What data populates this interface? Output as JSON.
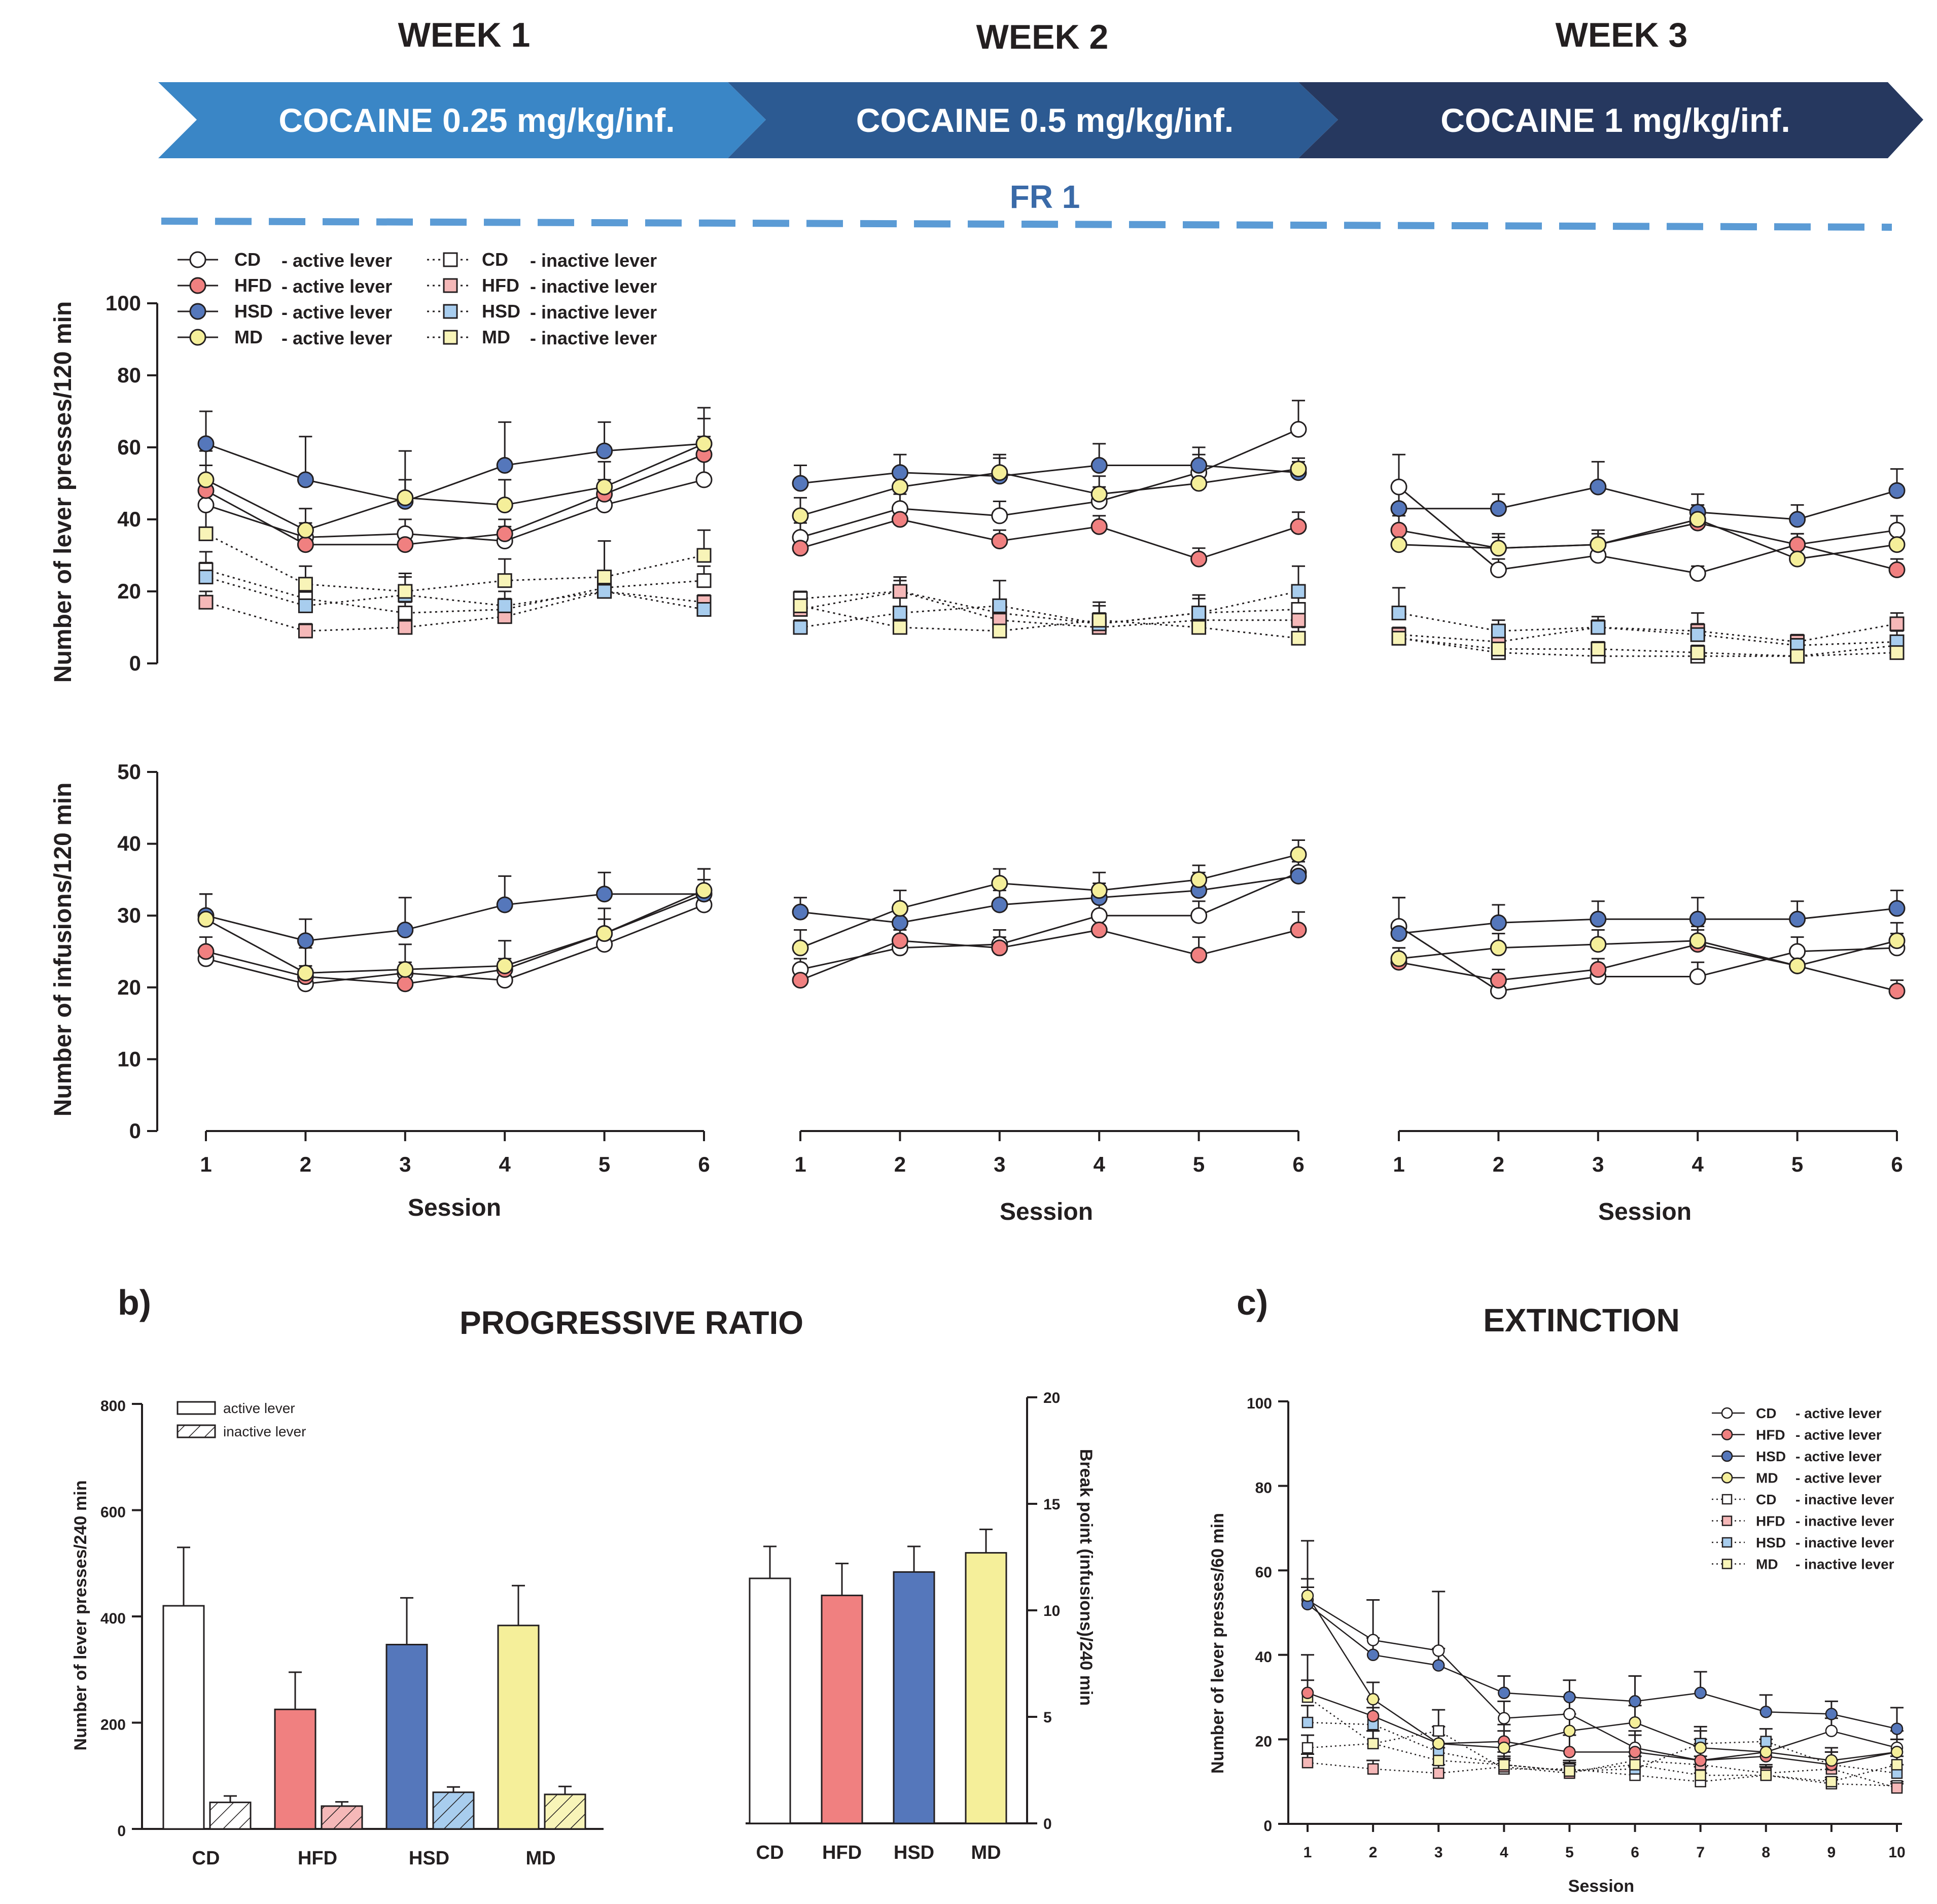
{
  "header": {
    "weeks": [
      {
        "label": "WEEK 1",
        "banner": "COCAINE 0.25 mg/kg/inf."
      },
      {
        "label": "WEEK 2",
        "banner": "COCAINE 0.5 mg/kg/inf."
      },
      {
        "label": "WEEK 3",
        "banner": "COCAINE 1 mg/kg/inf."
      }
    ],
    "schedule": "FR 1",
    "colors": {
      "banner1": "#3a86c6",
      "banner2": "#2c5a92",
      "banner3": "#26385f",
      "dash": "#5b9bd5"
    }
  },
  "groups": [
    {
      "name": "CD",
      "color": "#ffffff"
    },
    {
      "name": "HFD",
      "color": "#f08080"
    },
    {
      "name": "HSD",
      "color": "#5577bb"
    },
    {
      "name": "MD",
      "color": "#f5ef9a"
    }
  ],
  "inactive_colors": {
    "CD": "#ffffff",
    "HFD": "#f5b8b8",
    "HSD": "#a8cdee",
    "MD": "#f8f4b8"
  },
  "legend": {
    "active_suffix": "- active lever",
    "inactive_suffix": "- inactive lever"
  },
  "panel_labels": {
    "b": "b)",
    "c": "c)"
  },
  "chart_data": [
    {
      "id": "lever-presses",
      "type": "line",
      "ylabel": "Number of lever presses/120 min",
      "ylim": [
        0,
        100
      ],
      "yticks": [
        0,
        20,
        40,
        60,
        80,
        100
      ],
      "xlabel": "Session",
      "x": [
        1,
        2,
        3,
        4,
        5,
        6
      ],
      "weeks": [
        {
          "active": {
            "CD": {
              "values": [
                44,
                35,
                36,
                34,
                44,
                51
              ],
              "err": [
                7,
                4,
                4,
                4,
                5,
                6
              ]
            },
            "HFD": {
              "values": [
                48,
                33,
                33,
                36,
                47,
                58
              ],
              "err": [
                7,
                3,
                3,
                4,
                4,
                5
              ]
            },
            "HSD": {
              "values": [
                61,
                51,
                45,
                55,
                59,
                61
              ],
              "err": [
                9,
                12,
                14,
                12,
                8,
                10
              ]
            },
            "MD": {
              "values": [
                51,
                37,
                46,
                44,
                49,
                61
              ],
              "err": [
                8,
                6,
                5,
                7,
                7,
                7
              ]
            }
          },
          "inactive": {
            "CD": {
              "values": [
                26,
                18,
                14,
                15,
                21,
                23
              ],
              "err": [
                5,
                3,
                3,
                3,
                4,
                4
              ]
            },
            "HFD": {
              "values": [
                17,
                9,
                10,
                13,
                20,
                17
              ],
              "err": [
                3,
                2,
                2,
                2,
                2,
                2
              ]
            },
            "HSD": {
              "values": [
                24,
                16,
                19,
                16,
                20,
                15
              ],
              "err": [
                4,
                4,
                5,
                4,
                4,
                3
              ]
            },
            "MD": {
              "values": [
                36,
                22,
                20,
                23,
                24,
                30
              ],
              "err": [
                8,
                5,
                5,
                6,
                10,
                7
              ]
            }
          }
        },
        {
          "active": {
            "CD": {
              "values": [
                35,
                43,
                41,
                45,
                53,
                65
              ],
              "err": [
                4,
                4,
                4,
                4,
                5,
                8
              ]
            },
            "HFD": {
              "values": [
                32,
                40,
                34,
                38,
                29,
                38
              ],
              "err": [
                3,
                3,
                3,
                3,
                3,
                4
              ]
            },
            "HSD": {
              "values": [
                50,
                53,
                52,
                55,
                55,
                53
              ],
              "err": [
                5,
                5,
                5,
                6,
                5,
                3
              ]
            },
            "MD": {
              "values": [
                41,
                49,
                53,
                47,
                50,
                54
              ],
              "err": [
                5,
                5,
                5,
                5,
                6,
                3
              ]
            }
          },
          "inactive": {
            "CD": {
              "values": [
                18,
                20,
                14,
                11,
                14,
                15
              ],
              "err": [
                2,
                3,
                3,
                3,
                4,
                4
              ]
            },
            "HFD": {
              "values": [
                15,
                20,
                12,
                10,
                12,
                12
              ],
              "err": [
                3,
                4,
                4,
                3,
                3,
                3
              ]
            },
            "HSD": {
              "values": [
                10,
                14,
                16,
                11,
                14,
                20
              ],
              "err": [
                2,
                6,
                7,
                5,
                5,
                7
              ]
            },
            "MD": {
              "values": [
                16,
                10,
                9,
                12,
                10,
                7
              ],
              "err": [
                4,
                3,
                3,
                5,
                3,
                3
              ]
            }
          }
        },
        {
          "active": {
            "CD": {
              "values": [
                49,
                26,
                30,
                25,
                33,
                37
              ],
              "err": [
                9,
                3,
                3,
                2,
                3,
                4
              ]
            },
            "HFD": {
              "values": [
                37,
                32,
                33,
                39,
                33,
                26
              ],
              "err": [
                4,
                3,
                3,
                3,
                3,
                3
              ]
            },
            "HSD": {
              "values": [
                43,
                43,
                49,
                42,
                40,
                48
              ],
              "err": [
                5,
                4,
                7,
                5,
                4,
                6
              ]
            },
            "MD": {
              "values": [
                33,
                32,
                33,
                40,
                29,
                33
              ],
              "err": [
                4,
                4,
                4,
                4,
                4,
                4
              ]
            }
          },
          "inactive": {
            "CD": {
              "values": [
                7,
                3,
                2,
                2,
                2,
                5
              ],
              "err": [
                2,
                1,
                1,
                1,
                1,
                2
              ]
            },
            "HFD": {
              "values": [
                8,
                6,
                10,
                9,
                6,
                11
              ],
              "err": [
                2,
                2,
                2,
                2,
                2,
                3
              ]
            },
            "HSD": {
              "values": [
                14,
                9,
                10,
                8,
                5,
                6
              ],
              "err": [
                7,
                3,
                3,
                6,
                2,
                3
              ]
            },
            "MD": {
              "values": [
                7,
                4,
                4,
                3,
                2,
                3
              ],
              "err": [
                2,
                2,
                2,
                2,
                1,
                1
              ]
            }
          }
        }
      ]
    },
    {
      "id": "infusions",
      "type": "line",
      "ylabel": "Number of infusions/120 min",
      "ylim": [
        0,
        50
      ],
      "yticks": [
        0,
        10,
        20,
        30,
        40,
        50
      ],
      "xlabel": "Session",
      "x": [
        1,
        2,
        3,
        4,
        5,
        6
      ],
      "weeks": [
        {
          "CD": {
            "values": [
              24,
              20.5,
              22,
              21,
              26,
              31.5
            ],
            "err": [
              1.5,
              1.5,
              1.5,
              1.5,
              1.5,
              2
            ]
          },
          "HFD": {
            "values": [
              25,
              21.5,
              20.5,
              22.5,
              27.5,
              33
            ],
            "err": [
              2,
              1.5,
              1.5,
              1.5,
              2,
              2
            ]
          },
          "HSD": {
            "values": [
              30,
              26.5,
              28,
              31.5,
              33,
              33
            ],
            "err": [
              3,
              3,
              4.5,
              4,
              3,
              3.5
            ]
          },
          "MD": {
            "values": [
              29.5,
              22,
              22.5,
              23,
              27.5,
              33.5
            ],
            "err": [
              3.5,
              3.5,
              3.5,
              3.5,
              3.5,
              3
            ]
          }
        },
        {
          "CD": {
            "values": [
              22.5,
              25.5,
              26,
              30,
              30,
              36
            ],
            "err": [
              1.5,
              1.5,
              2,
              2,
              2,
              2
            ]
          },
          "HFD": {
            "values": [
              21,
              26.5,
              25.5,
              28,
              24.5,
              28
            ],
            "err": [
              1.5,
              1.5,
              1.5,
              1.5,
              2.5,
              2.5
            ]
          },
          "HSD": {
            "values": [
              30.5,
              29,
              31.5,
              32.5,
              33.5,
              35.5
            ],
            "err": [
              2,
              2,
              2,
              2,
              2.5,
              2
            ]
          },
          "MD": {
            "values": [
              25.5,
              31,
              34.5,
              33.5,
              35,
              38.5
            ],
            "err": [
              2.5,
              2.5,
              2,
              2.5,
              2,
              2
            ]
          }
        },
        {
          "CD": {
            "values": [
              28.5,
              19.5,
              21.5,
              21.5,
              25,
              25.5
            ],
            "err": [
              4,
              1.5,
              1.5,
              2,
              2,
              2
            ]
          },
          "HFD": {
            "values": [
              23.5,
              21,
              22.5,
              26,
              23,
              19.5
            ],
            "err": [
              2,
              1.5,
              1.5,
              2,
              2,
              1.5
            ]
          },
          "HSD": {
            "values": [
              27.5,
              29,
              29.5,
              29.5,
              29.5,
              31
            ],
            "err": [
              5,
              2.5,
              2.5,
              3,
              2.5,
              2.5
            ]
          },
          "MD": {
            "values": [
              24,
              25.5,
              26,
              26.5,
              23,
              26.5
            ],
            "err": [
              1.5,
              2,
              2,
              2,
              2,
              2.5
            ]
          }
        }
      ]
    },
    {
      "id": "progressive-ratio-presses",
      "type": "bar",
      "title": "PROGRESSIVE RATIO",
      "ylabel": "Number of lever presses/240 min",
      "ylim": [
        0,
        800
      ],
      "yticks": [
        0,
        200,
        400,
        600,
        800
      ],
      "categories": [
        "CD",
        "HFD",
        "HSD",
        "MD"
      ],
      "legend": [
        "active lever",
        "inactive lever"
      ],
      "series": [
        {
          "name": "active lever",
          "values": [
            420,
            225,
            347,
            383
          ],
          "err": [
            110,
            70,
            88,
            75
          ]
        },
        {
          "name": "inactive lever",
          "values": [
            50,
            43,
            69,
            65
          ],
          "err": [
            12,
            8,
            10,
            15
          ]
        }
      ]
    },
    {
      "id": "break-point",
      "type": "bar",
      "ylabel": "Break point (infusions)/240 min",
      "ylim": [
        0,
        20
      ],
      "yticks": [
        0,
        5,
        10,
        15,
        20
      ],
      "categories": [
        "CD",
        "HFD",
        "HSD",
        "MD"
      ],
      "values": [
        11.5,
        10.7,
        11.8,
        12.7
      ],
      "err": [
        1.5,
        1.5,
        1.2,
        1.1
      ]
    },
    {
      "id": "extinction",
      "type": "line",
      "title": "EXTINCTION",
      "ylabel": "Number of lever presses/60 min",
      "ylim": [
        0,
        100
      ],
      "yticks": [
        0,
        20,
        40,
        60,
        80,
        100
      ],
      "xlabel": "Session",
      "x": [
        1,
        2,
        3,
        4,
        5,
        6,
        7,
        8,
        9,
        10
      ],
      "active": {
        "CD": {
          "values": [
            53,
            43.5,
            41,
            25,
            26,
            18,
            15,
            17,
            22,
            18
          ],
          "err": [
            14,
            9.5,
            14,
            4,
            4,
            4,
            4,
            3,
            3,
            4
          ]
        },
        "HFD": {
          "values": [
            31,
            25.5,
            19,
            19.5,
            17,
            17,
            15,
            16,
            14,
            17
          ],
          "err": [
            9,
            4,
            4,
            4,
            4,
            4,
            5,
            3,
            3,
            3
          ]
        },
        "HSD": {
          "values": [
            52,
            40,
            37.5,
            31,
            30,
            29,
            31,
            26.5,
            26,
            22.5
          ],
          "err": [
            4,
            4,
            4,
            4,
            4,
            6,
            5,
            4,
            3,
            5
          ]
        },
        "MD": {
          "values": [
            54,
            29.5,
            19,
            18,
            22,
            24,
            18,
            17,
            15,
            17
          ],
          "err": [
            4,
            4,
            4,
            4,
            4,
            4,
            4,
            3,
            3,
            3
          ]
        }
      },
      "inactive": {
        "CD": {
          "values": [
            18,
            19,
            22,
            13,
            13,
            11.5,
            10,
            11.5,
            9.5,
            9
          ],
          "err": [
            3,
            3,
            5,
            2,
            2,
            2,
            2,
            2,
            1,
            1
          ]
        },
        "HFD": {
          "values": [
            14.5,
            13,
            12,
            13.5,
            12,
            15,
            14,
            12,
            13,
            8.5
          ],
          "err": [
            2,
            2,
            2,
            2,
            2,
            2,
            2,
            2,
            2,
            1
          ]
        },
        "HSD": {
          "values": [
            24,
            23.5,
            17,
            14,
            12.5,
            13,
            19,
            19.5,
            14,
            12
          ],
          "err": [
            4,
            4,
            4,
            3,
            2,
            3,
            4,
            3,
            3,
            2
          ]
        },
        "MD": {
          "values": [
            30,
            19,
            15,
            14,
            12.5,
            14,
            11.5,
            11.5,
            10,
            14
          ],
          "err": [
            4,
            3,
            3,
            2,
            2,
            2,
            2,
            2,
            1,
            2
          ]
        }
      }
    }
  ]
}
